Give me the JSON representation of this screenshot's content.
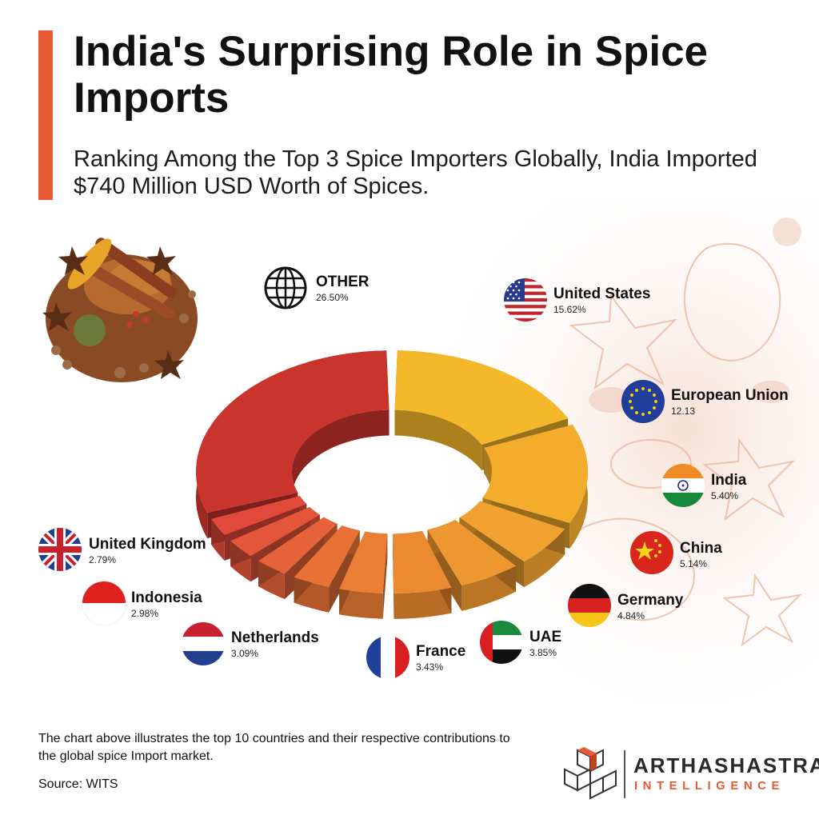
{
  "header": {
    "title": "India's Surprising Role in Spice Imports",
    "subtitle": "Ranking Among the Top 3 Spice Importers Globally, India Imported $740 Million USD Worth of Spices."
  },
  "chart_data": {
    "type": "pie",
    "title": "India's Surprising Role in Spice Imports",
    "categories": [
      "United States",
      "European Union",
      "India",
      "China",
      "Germany",
      "UAE",
      "France",
      "Netherlands",
      "Indonesia",
      "United Kingdom",
      "OTHER"
    ],
    "values": [
      15.62,
      12.13,
      5.4,
      5.14,
      4.84,
      3.85,
      3.43,
      3.09,
      2.98,
      2.79,
      26.5
    ],
    "value_labels": [
      "15.62%",
      "12.13",
      "5.40%",
      "5.14%",
      "4.84%",
      "3.85%",
      "3.43%",
      "3.09%",
      "2.98%",
      "2.79%",
      "26.50%"
    ],
    "colors": [
      "#f5b82a",
      "#f3ac2c",
      "#f0a12f",
      "#ee962f",
      "#ec8a31",
      "#ea7e33",
      "#e87236",
      "#e66238",
      "#e4553a",
      "#e14a3b",
      "#c9342c"
    ],
    "style": "3D exploded donut"
  },
  "icons": {
    "other": "globe-icon",
    "us": "united-states-flag",
    "eu": "european-union-flag",
    "in": "india-flag",
    "cn": "china-flag",
    "de": "germany-flag",
    "ae": "uae-flag",
    "fr": "france-flag",
    "nl": "netherlands-flag",
    "id": "indonesia-flag",
    "uk": "united-kingdom-flag"
  },
  "footer": {
    "note": "The chart above illustrates the top 10 countries and their respective contributions to the global spice Import market.",
    "source": "Source: WITS",
    "brand": "ARTHASHASTRA",
    "brand_sub": "INTELLIGENCE"
  },
  "colors": {
    "accent": "#e85a34",
    "text": "#111111"
  }
}
